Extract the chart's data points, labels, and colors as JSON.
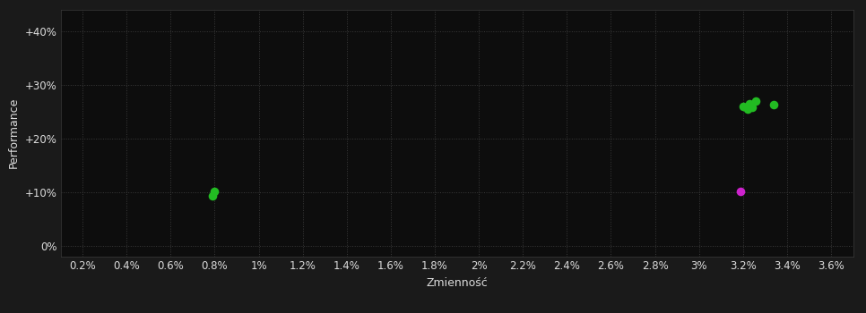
{
  "background_color": "#1a1a1a",
  "plot_bg_color": "#0d0d0d",
  "grid_color": "#3a3a3a",
  "text_color": "#dddddd",
  "xlabel": "Zmienność",
  "ylabel": "Performance",
  "xlim": [
    0.001,
    0.037
  ],
  "ylim": [
    -0.02,
    0.44
  ],
  "xticks": [
    0.002,
    0.004,
    0.006,
    0.008,
    0.01,
    0.012,
    0.014,
    0.016,
    0.018,
    0.02,
    0.022,
    0.024,
    0.026,
    0.028,
    0.03,
    0.032,
    0.034,
    0.036
  ],
  "yticks": [
    0.0,
    0.1,
    0.2,
    0.3,
    0.4
  ],
  "ytick_labels": [
    "0%",
    "+10%",
    "+20%",
    "+30%",
    "+40%"
  ],
  "xtick_labels": [
    "0.2%",
    "0.4%",
    "0.6%",
    "0.8%",
    "1%",
    "1.2%",
    "1.4%",
    "1.6%",
    "1.8%",
    "2%",
    "2.2%",
    "2.4%",
    "2.6%",
    "2.8%",
    "3%",
    "3.2%",
    "3.4%",
    "3.6%"
  ],
  "green_points_x": [
    0.008,
    0.0079,
    0.032,
    0.0322,
    0.0323,
    0.0324,
    0.0326,
    0.0334
  ],
  "green_points_y": [
    0.101,
    0.093,
    0.26,
    0.255,
    0.265,
    0.258,
    0.27,
    0.263
  ],
  "magenta_points_x": [
    0.0319
  ],
  "magenta_points_y": [
    0.102
  ],
  "green_color": "#22bb22",
  "magenta_color": "#cc22cc",
  "marker_size": 48,
  "font_size": 8.5,
  "grid_linestyle": "dotted",
  "grid_linewidth": 0.7
}
